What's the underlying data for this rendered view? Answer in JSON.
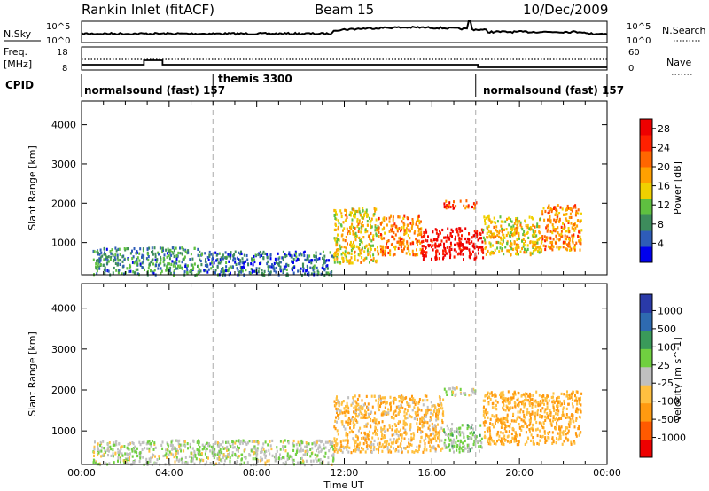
{
  "header": {
    "station": "Rankin Inlet (fitACF)",
    "beam": "Beam 15",
    "date": "10/Dec/2009"
  },
  "noise_panel": {
    "left_label": "N.Sky",
    "right_label": "N.Search",
    "left_ticks": [
      "10^5",
      "10^0"
    ],
    "right_ticks": [
      "10^5",
      "10^0"
    ]
  },
  "freq_panel": {
    "left_label_1": "Freq.",
    "left_label_2": "[MHz]",
    "left_ticks": [
      "18",
      "8"
    ],
    "right_label": "Nave",
    "right_ticks": [
      "60",
      "0"
    ]
  },
  "cpid_panel": {
    "label": "CPID",
    "segments": [
      {
        "text": "normalsound (fast) 157",
        "start_h": 0
      },
      {
        "text": "themis 3300",
        "start_h": 6
      },
      {
        "text": "normalsound (fast) 157",
        "start_h": 18
      }
    ]
  },
  "time_axis": {
    "label": "Time UT",
    "ticks": [
      "00:00",
      "04:00",
      "08:00",
      "12:00",
      "16:00",
      "20:00",
      "00:00"
    ],
    "range_hours": [
      0,
      24
    ]
  },
  "colors": {
    "power_scale": [
      "#0000ee",
      "#2e5cb8",
      "#3d8c5c",
      "#5fc040",
      "#f0d000",
      "#ffa000",
      "#ff6600",
      "#ff2000",
      "#ee0000"
    ],
    "velocity_scale": [
      "#ee0000",
      "#ff5a00",
      "#ff9a10",
      "#ffc040",
      "#c0c0c0",
      "#70d040",
      "#3a9a5a",
      "#2e6ab0",
      "#2a3aa8"
    ]
  },
  "chart_data": [
    {
      "type": "heatmap",
      "title": "Power",
      "xlabel": "Time UT",
      "ylabel": "Slant Range [km]",
      "xlim": [
        0,
        24
      ],
      "ylim": [
        180,
        4600
      ],
      "yticks": [
        "1000",
        "2000",
        "3000",
        "4000"
      ],
      "colorbar": {
        "label": "Power [dB]",
        "ticks": [
          "4",
          "8",
          "12",
          "16",
          "20",
          "24",
          "28"
        ],
        "range": [
          0,
          30
        ]
      },
      "regions": [
        {
          "t": [
            0.5,
            5.5
          ],
          "r": [
            200,
            900
          ],
          "value": 8
        },
        {
          "t": [
            5.5,
            11.5
          ],
          "r": [
            200,
            800
          ],
          "value": 6
        },
        {
          "t": [
            11.5,
            13.5
          ],
          "r": [
            500,
            1900
          ],
          "value": 16
        },
        {
          "t": [
            13.5,
            15.5
          ],
          "r": [
            700,
            1700
          ],
          "value": 20
        },
        {
          "t": [
            15.5,
            18.3
          ],
          "r": [
            600,
            1400
          ],
          "value": 28
        },
        {
          "t": [
            16.5,
            18.0
          ],
          "r": [
            1900,
            2100
          ],
          "value": 24
        },
        {
          "t": [
            18.3,
            21.0
          ],
          "r": [
            700,
            1700
          ],
          "value": 16
        },
        {
          "t": [
            21.0,
            22.8
          ],
          "r": [
            800,
            2000
          ],
          "value": 20
        }
      ]
    },
    {
      "type": "heatmap",
      "title": "Velocity",
      "xlabel": "Time UT",
      "ylabel": "Slant Range [km]",
      "xlim": [
        0,
        24
      ],
      "ylim": [
        180,
        4600
      ],
      "yticks": [
        "1000",
        "2000",
        "3000",
        "4000"
      ],
      "colorbar": {
        "label": "Velocity [m s^-1]",
        "ticks": [
          "1000",
          "500",
          "100",
          "25",
          "-25",
          "-100",
          "-500",
          "-1000"
        ],
        "range": [
          -1200,
          1200
        ]
      },
      "regions": [
        {
          "t": [
            0.5,
            11.5
          ],
          "r": [
            200,
            800
          ],
          "value": 50
        },
        {
          "t": [
            11.5,
            16.5
          ],
          "r": [
            500,
            1900
          ],
          "value": -300
        },
        {
          "t": [
            16.5,
            18.3
          ],
          "r": [
            500,
            1200
          ],
          "value": 200
        },
        {
          "t": [
            16.5,
            18.0
          ],
          "r": [
            1900,
            2100
          ],
          "value": 0
        },
        {
          "t": [
            18.3,
            22.8
          ],
          "r": [
            700,
            2000
          ],
          "value": -400
        }
      ]
    }
  ]
}
